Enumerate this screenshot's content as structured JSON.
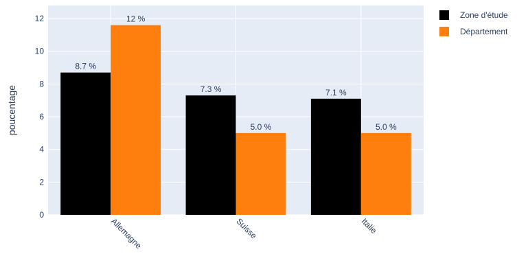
{
  "chart_data": {
    "type": "bar",
    "categories": [
      "Allemagne",
      "Suisse",
      "Italie"
    ],
    "series": [
      {
        "name": "Zone d'étude",
        "color": "#000000",
        "values": [
          8.7,
          7.3,
          7.1
        ],
        "labels": [
          "8.7 %",
          "7.3 %",
          "7.1 %"
        ]
      },
      {
        "name": "Département",
        "color": "#ff7f0e",
        "values": [
          11.6,
          5.0,
          5.0
        ],
        "labels": [
          "12 %",
          "5.0 %",
          "5.0 %"
        ]
      }
    ],
    "ylabel": "poucentage",
    "xlabel": "",
    "ylim": [
      0,
      12.8
    ],
    "yticks": [
      "0",
      "2",
      "4",
      "6",
      "8",
      "10",
      "12"
    ],
    "grid": true,
    "legend_position": "top-right",
    "plot_background": "#e5ecf6"
  }
}
